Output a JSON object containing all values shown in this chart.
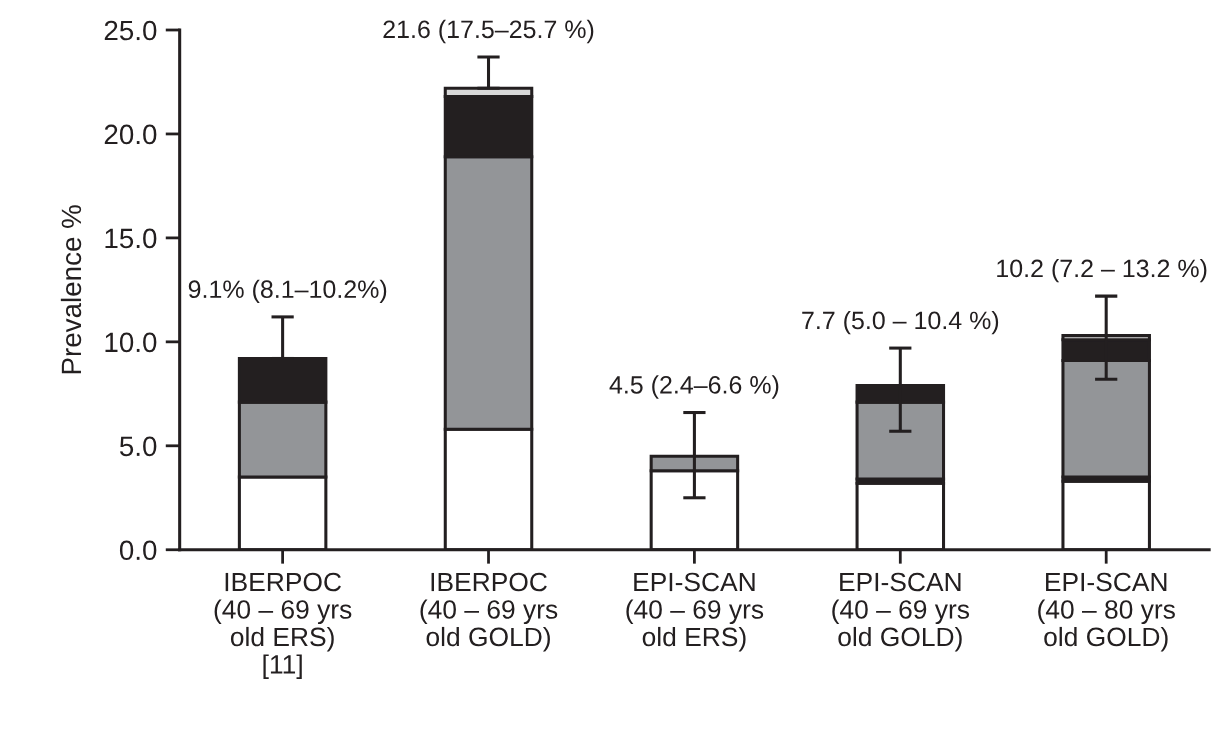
{
  "chart_data": {
    "type": "bar",
    "stacked": true,
    "ylabel": "Prevalence %",
    "categories": [
      "IBERPOC\n(40 – 69 yrs\nold ERS)\n[11]",
      "IBERPOC\n(40 – 69 yrs\nold GOLD)",
      "EPI-SCAN\n(40 – 69 yrs\nold ERS)",
      "EPI-SCAN\n(40 – 69 yrs\nold GOLD)",
      "EPI-SCAN\n(40 – 80 yrs\nold GOLD)"
    ],
    "series": [
      {
        "color": "#ffffff",
        "values": [
          3.5,
          5.8,
          3.8,
          3.2,
          3.3
        ]
      },
      {
        "color": "#231f20",
        "values": [
          null,
          null,
          null,
          0.2,
          0.2
        ]
      },
      {
        "color": "#939598",
        "values": [
          3.6,
          13.1,
          0.7,
          3.7,
          5.6
        ],
        "errors": [
          null,
          null,
          [
            2.5,
            6.6
          ],
          null,
          null
        ]
      },
      {
        "color": "#231f20",
        "values": [
          2.1,
          2.9,
          null,
          0.8,
          1.0
        ],
        "errors": [
          [
            9.2,
            11.2
          ],
          null,
          null,
          [
            5.7,
            9.7
          ],
          null
        ]
      },
      {
        "color": "#d9d9d9",
        "values": [
          null,
          0.4,
          null,
          null,
          0.2
        ],
        "errors": [
          null,
          [
            22.2,
            23.7
          ],
          null,
          null,
          [
            8.2,
            12.2
          ]
        ]
      }
    ],
    "annotations": [
      {
        "text": "9.1% (8.1–10.2%)",
        "x": "IBERPOC\n(40 – 69 yrs\nold ERS)\n[11]",
        "y": 9.2
      },
      {
        "text": "21.6 (17.5–25.7 %)",
        "x": "IBERPOC\n(40 – 69 yrs\nold GOLD)",
        "y": 22.2
      },
      {
        "text": "4.5 (2.4–6.6 %)",
        "x": "EPI-SCAN\n(40 – 69 yrs\nold ERS)",
        "y": 4.5
      },
      {
        "text": "7.7 (5.0 – 10.4 %)",
        "x": "EPI-SCAN\n(40 – 69 yrs\nold GOLD)",
        "y": 7.9
      },
      {
        "text": "10.2 (7.2 – 13.2 %)",
        "x": "EPI-SCAN\n(40 – 80 yrs\nold GOLD)",
        "y": 10.3
      }
    ],
    "ylim": [
      0,
      25
    ],
    "yticks": [
      {
        "value": 0,
        "label": "0.0"
      },
      {
        "value": 5,
        "label": "5.0"
      },
      {
        "value": 10,
        "label": "10.0"
      },
      {
        "value": 15,
        "label": "15.0"
      },
      {
        "value": 20,
        "label": "20.0"
      },
      {
        "value": 25,
        "label": "25.0"
      }
    ],
    "grid": false
  }
}
